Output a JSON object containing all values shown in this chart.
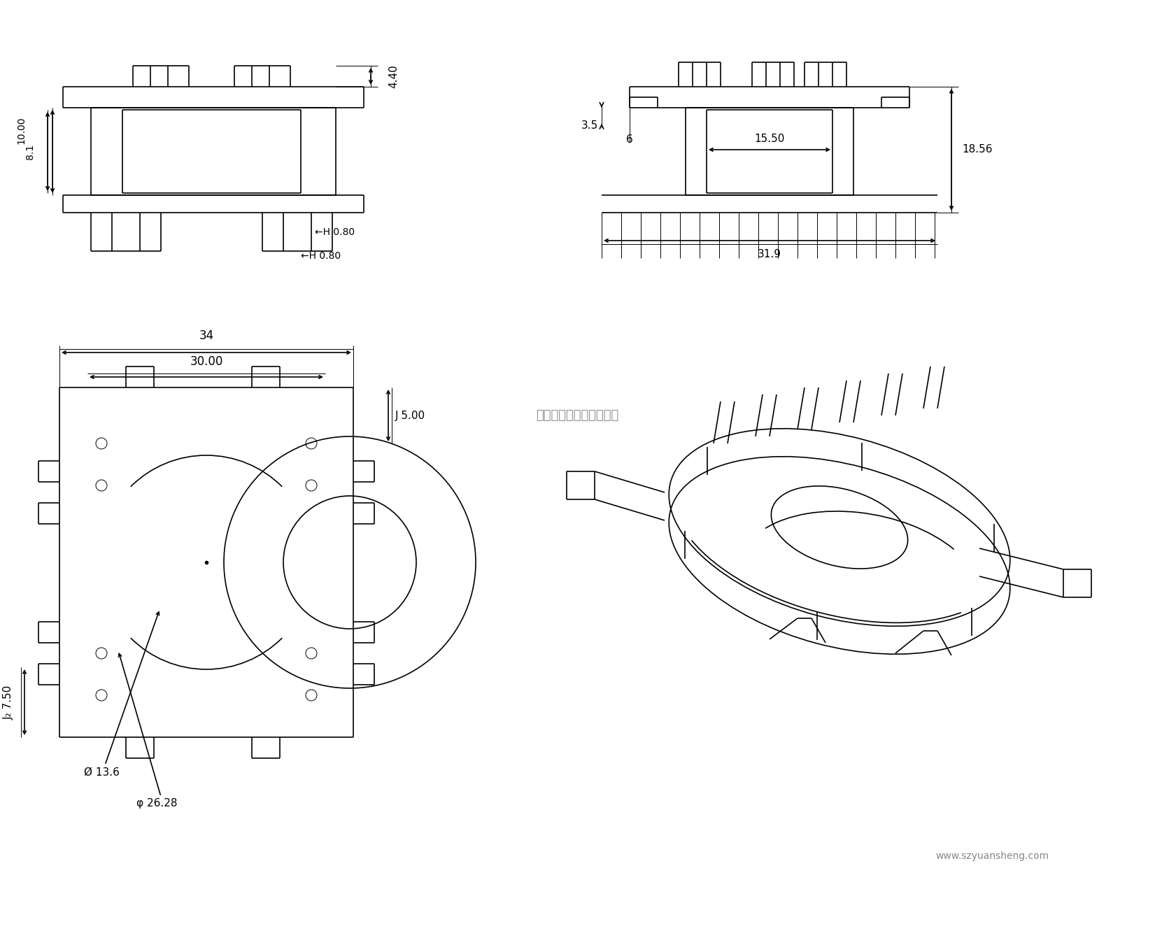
{
  "bg_color": "#ffffff",
  "line_color": "#000000",
  "line_width": 1.2,
  "thin_line": 0.7,
  "company": "深圳市源升塑胶有限公司",
  "website": "www.szyuansheng.com",
  "dims": {
    "front_4_40": "4.40",
    "front_10_00": "10.00",
    "front_8_1": "8.1",
    "front_H_0_80": "H 0.80",
    "right_3_5": "3.5",
    "right_6": "6",
    "right_15_50": "15.50",
    "right_18_56": "18.56",
    "right_31_9": "31.9",
    "top_34": "34",
    "top_30_00": "30.00",
    "top_J_5_00": "J 5.00",
    "top_J2_7_50": "J₂ 7.50",
    "top_phi_13_6": "Ø 13.6",
    "top_phi_26_28": "φ 26.28"
  }
}
